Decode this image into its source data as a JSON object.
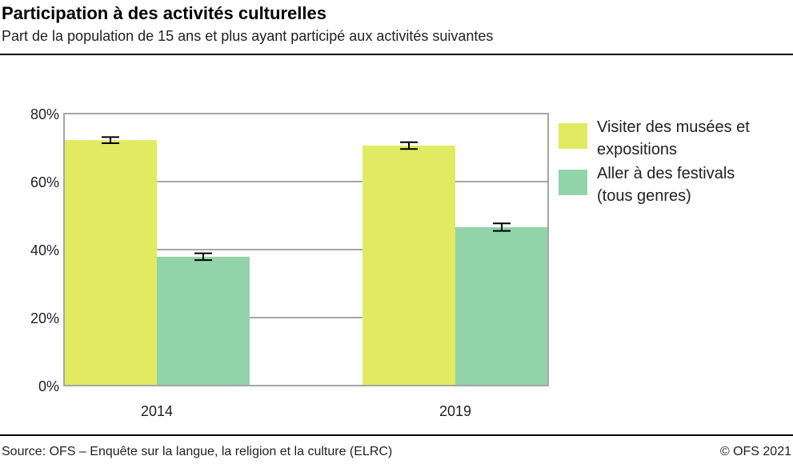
{
  "chart_data": {
    "type": "bar",
    "title": "Participation à des activités culturelles",
    "subtitle": "Part de la population de 15 ans et plus ayant participé aux activités suivantes",
    "categories": [
      "2014",
      "2019"
    ],
    "series": [
      {
        "name": "Visiter des musées et expositions",
        "legend_lines": [
          "Visiter des musées et",
          "expositions"
        ],
        "color": "#e1ea62",
        "values": [
          72.2,
          70.6
        ],
        "error": [
          0.9,
          1.0
        ]
      },
      {
        "name": "Aller à des festivals (tous genres)",
        "legend_lines": [
          "Aller à des festivals",
          "(tous genres)"
        ],
        "color": "#92d3a9",
        "values": [
          37.9,
          46.6
        ],
        "error": [
          1.0,
          1.1
        ]
      }
    ],
    "ylim": [
      0,
      80
    ],
    "yticks": [
      0,
      20,
      40,
      60,
      80
    ],
    "ytick_labels": [
      "0%",
      "20%",
      "40%",
      "60%",
      "80%"
    ],
    "grid": true,
    "legend": "right",
    "xlabel": "",
    "ylabel": ""
  },
  "footer": {
    "source": "Source: OFS – Enquête sur la langue, la religion et la culture (ELRC)",
    "copyright": "© OFS 2021"
  }
}
